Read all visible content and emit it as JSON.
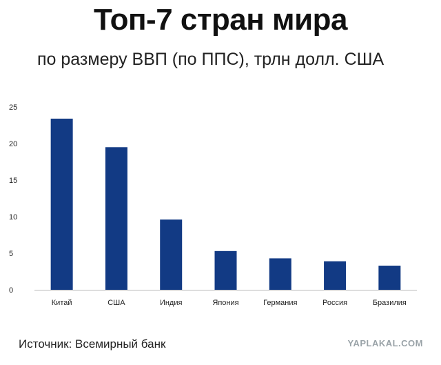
{
  "header": {
    "title": "Топ-7 стран мира",
    "subtitle": "по размеру ВВП (по ППС), трлн долл. США"
  },
  "footer": {
    "source": "Источник:  Всемирный банк",
    "watermark": "YAPLAKAL.COM"
  },
  "colors": {
    "bar": "#123a84",
    "axis": "#b8b8b8"
  },
  "chart_data": {
    "type": "bar",
    "title": "Топ-7 стран мира",
    "subtitle": "по размеру ВВП (по ППС), трлн долл. США",
    "categories": [
      "Китай",
      "США",
      "Индия",
      "Япония",
      "Германия",
      "Россия",
      "Бразилия"
    ],
    "values": [
      23.4,
      19.5,
      9.6,
      5.3,
      4.3,
      3.9,
      3.3
    ],
    "ylim": [
      0,
      25
    ],
    "yticks": [
      0,
      5,
      10,
      15,
      20,
      25
    ],
    "xlabel": "",
    "ylabel": "",
    "grid": false,
    "legend": "none"
  }
}
